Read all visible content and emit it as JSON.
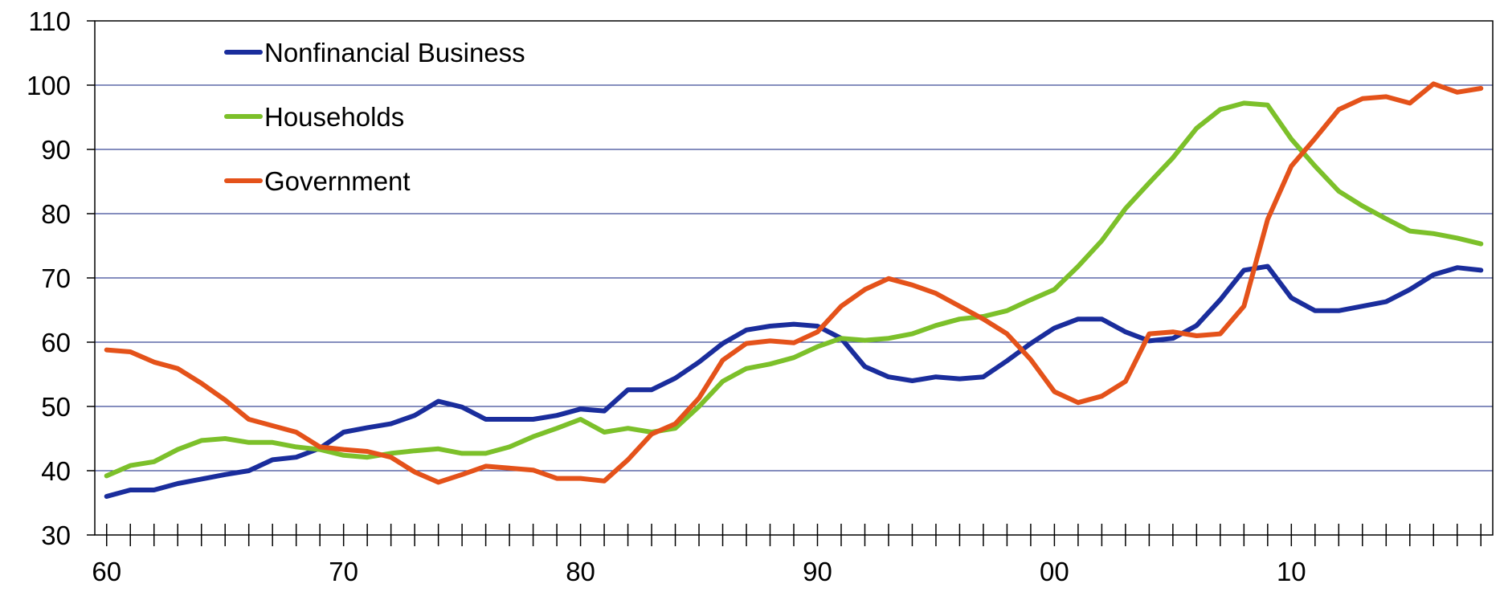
{
  "chart_data": {
    "type": "line",
    "title": "",
    "xlabel": "",
    "ylabel": "",
    "xlim": [
      1959.5,
      2018.5
    ],
    "ylim": [
      30,
      110
    ],
    "yticks": [
      30,
      40,
      50,
      60,
      70,
      80,
      90,
      100,
      110
    ],
    "xticks": [
      {
        "value": 1960,
        "label": "60"
      },
      {
        "value": 1970,
        "label": "70"
      },
      {
        "value": 1980,
        "label": "80"
      },
      {
        "value": 1990,
        "label": "90"
      },
      {
        "value": 2000,
        "label": "00"
      },
      {
        "value": 2010,
        "label": "10"
      }
    ],
    "grid": "horizontal",
    "legend_position": "top-left",
    "x": [
      1960,
      1961,
      1962,
      1963,
      1964,
      1965,
      1966,
      1967,
      1968,
      1969,
      1970,
      1971,
      1972,
      1973,
      1974,
      1975,
      1976,
      1977,
      1978,
      1979,
      1980,
      1981,
      1982,
      1983,
      1984,
      1985,
      1986,
      1987,
      1988,
      1989,
      1990,
      1991,
      1992,
      1993,
      1994,
      1995,
      1996,
      1997,
      1998,
      1999,
      2000,
      2001,
      2002,
      2003,
      2004,
      2005,
      2006,
      2007,
      2008,
      2009,
      2010,
      2011,
      2012,
      2013,
      2014,
      2015,
      2016,
      2017,
      2018
    ],
    "series": [
      {
        "name": "Nonfinancial Business",
        "color": "#1a2d9c",
        "values": [
          36,
          37,
          37,
          38,
          38.7,
          39.4,
          40,
          41.7,
          42.1,
          43.5,
          46,
          46.7,
          47.3,
          48.6,
          50.8,
          49.9,
          48,
          48,
          48,
          48.6,
          49.6,
          49.3,
          52.6,
          52.6,
          54.4,
          56.9,
          59.8,
          61.9,
          62.5,
          62.8,
          62.5,
          60.6,
          56.2,
          54.6,
          54,
          54.6,
          54.3,
          54.6,
          57.1,
          59.8,
          62.2,
          63.6,
          63.6,
          61.6,
          60.2,
          60.6,
          62.6,
          66.6,
          71.2,
          71.8,
          66.9,
          64.9,
          64.9,
          65.6,
          66.3,
          68.2,
          70.5,
          71.6,
          71.2
        ]
      },
      {
        "name": "Households",
        "color": "#7cc02a",
        "values": [
          39.2,
          40.8,
          41.4,
          43.3,
          44.7,
          45,
          44.4,
          44.4,
          43.7,
          43.3,
          42.4,
          42.1,
          42.7,
          43.1,
          43.4,
          42.7,
          42.7,
          43.7,
          45.3,
          46.6,
          48,
          46,
          46.6,
          46,
          46.6,
          50,
          53.9,
          55.9,
          56.6,
          57.6,
          59.3,
          60.6,
          60.3,
          60.6,
          61.3,
          62.6,
          63.6,
          64,
          64.9,
          66.6,
          68.2,
          71.8,
          75.8,
          80.8,
          84.8,
          88.7,
          93.3,
          96.2,
          97.2,
          96.9,
          91.6,
          87.4,
          83.5,
          81.2,
          79.2,
          77.3,
          76.9,
          76.2,
          75.3
        ]
      },
      {
        "name": "Government",
        "color": "#e4521a",
        "values": [
          58.8,
          58.5,
          56.9,
          55.9,
          53.6,
          51,
          48,
          47,
          46,
          43.7,
          43.3,
          43,
          42.1,
          39.8,
          38.2,
          39.4,
          40.7,
          40.4,
          40.1,
          38.8,
          38.8,
          38.4,
          41.7,
          45.7,
          47.3,
          51.3,
          57.2,
          59.8,
          60.2,
          59.9,
          61.6,
          65.6,
          68.2,
          69.9,
          68.9,
          67.6,
          65.6,
          63.6,
          61.3,
          57.3,
          52.3,
          50.6,
          51.6,
          53.9,
          61.3,
          61.6,
          61,
          61.3,
          65.6,
          79.1,
          87.4,
          91.7,
          96.2,
          97.9,
          98.2,
          97.2,
          100.2,
          98.9,
          99.5
        ]
      }
    ]
  }
}
